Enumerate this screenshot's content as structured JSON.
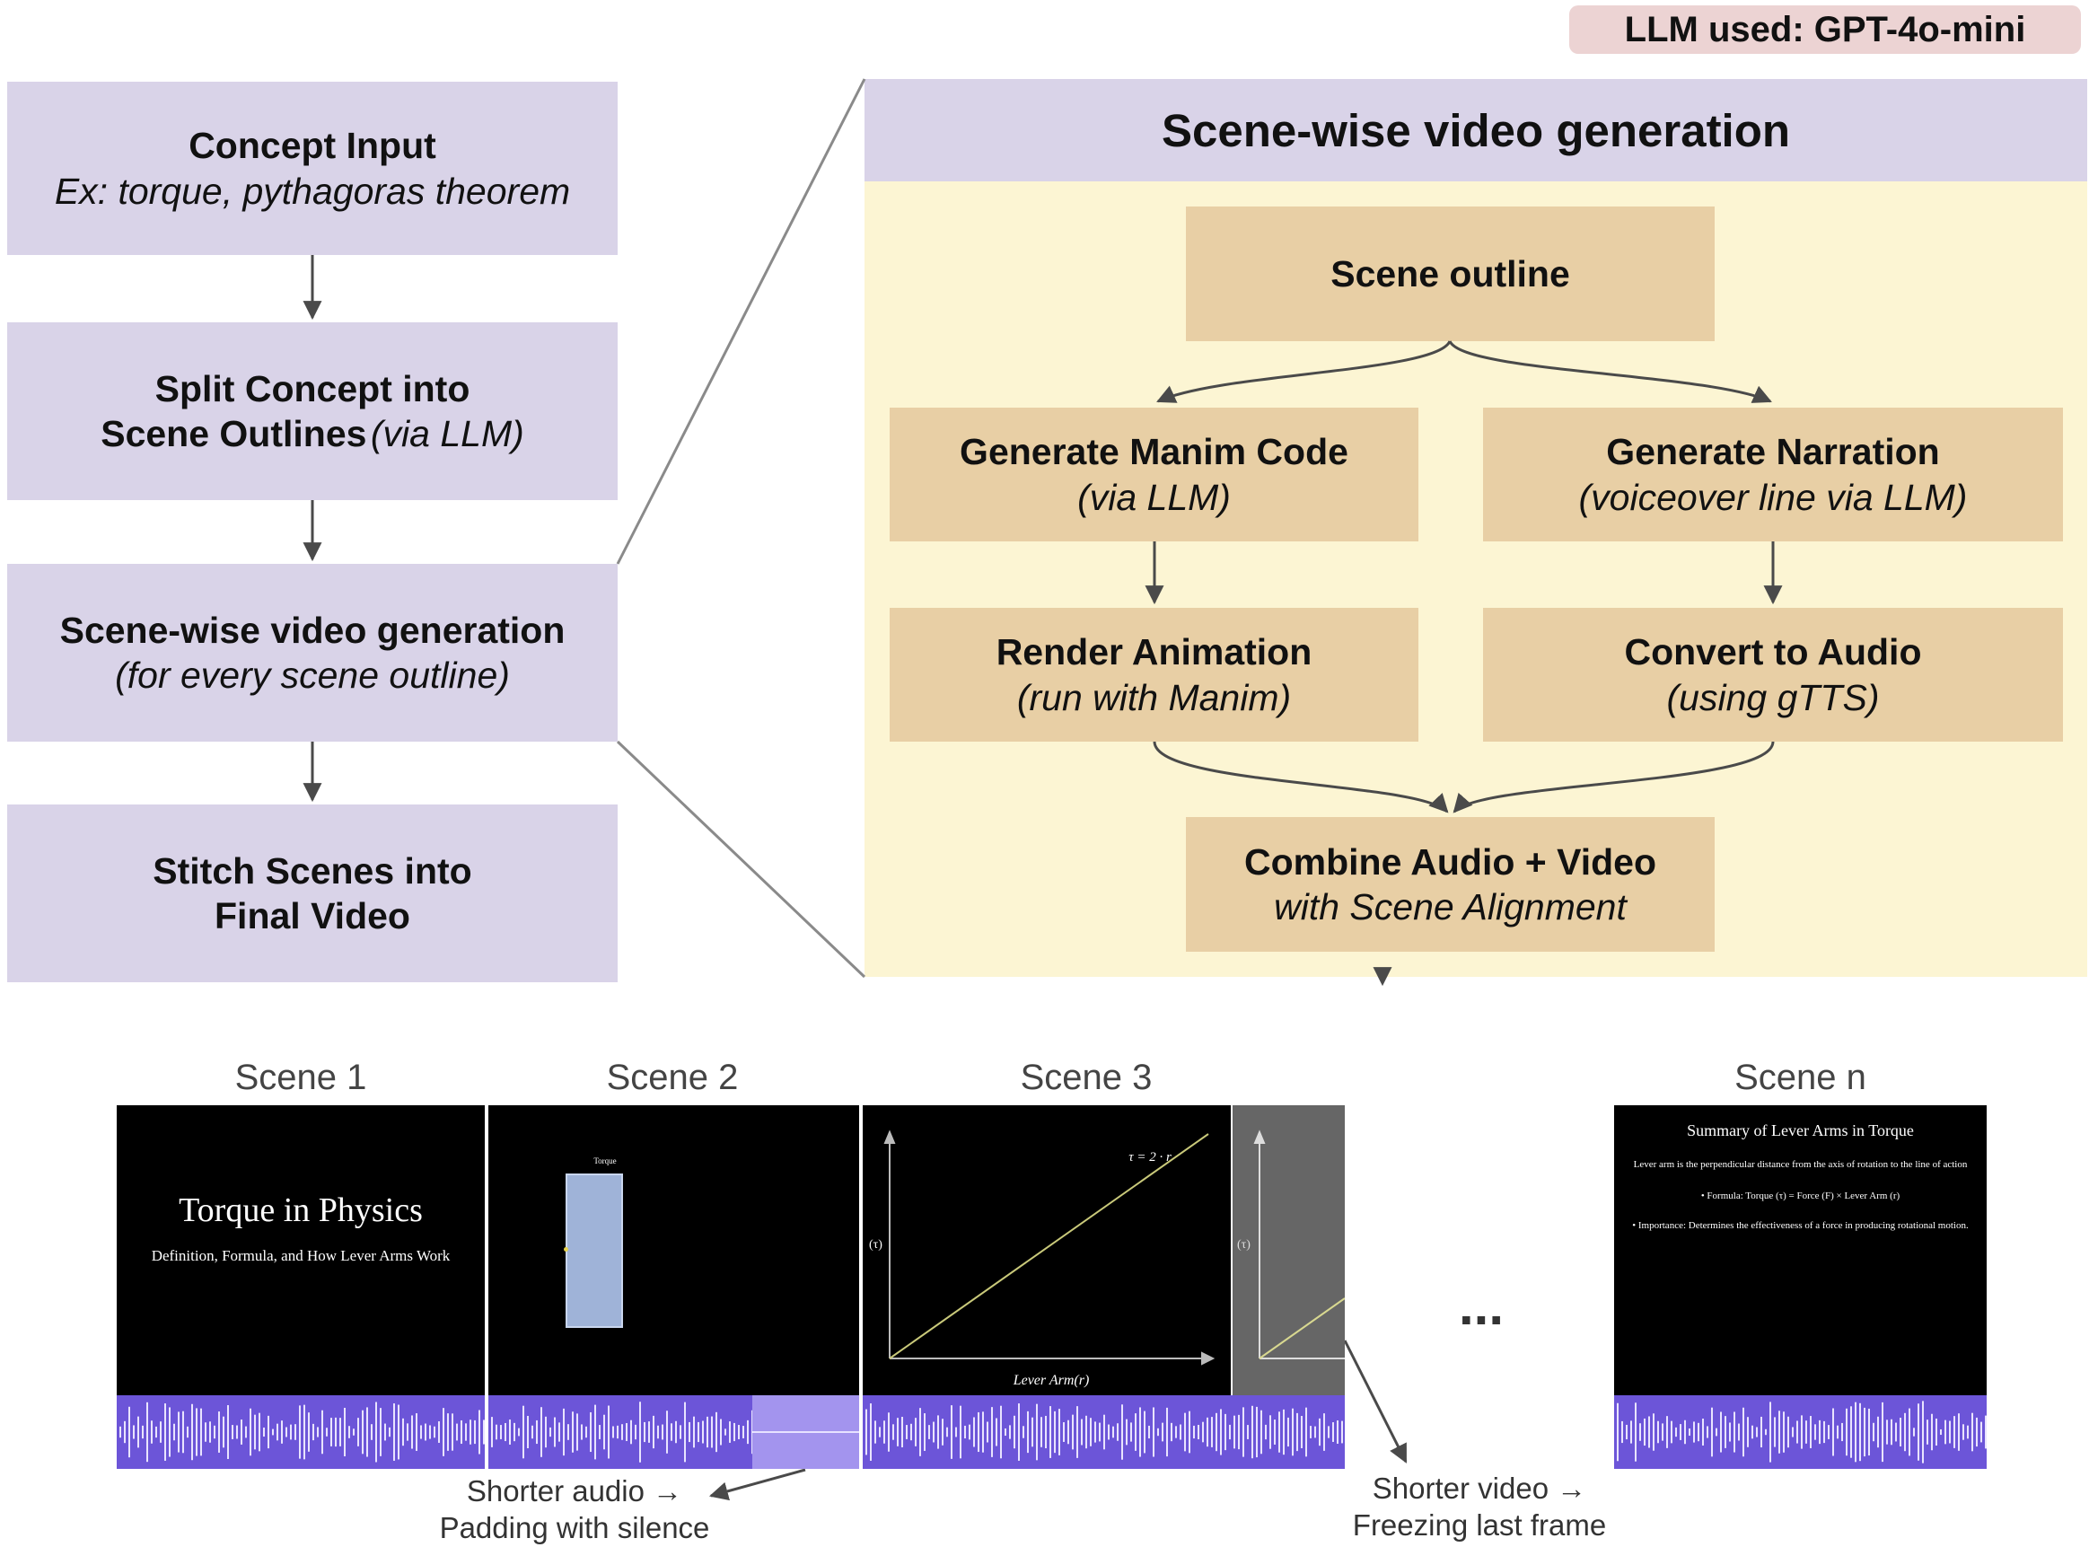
{
  "llm_badge": "LLM used: GPT-4o-mini",
  "left_flow": [
    {
      "title": "Concept Input",
      "subtitle": "Ex: torque, pythagoras theorem"
    },
    {
      "title": "Split Concept into",
      "title2": "Scene Outlines",
      "subtitle": "(via LLM)"
    },
    {
      "title": "Scene-wise video generation",
      "subtitle": "(for every scene outline)"
    },
    {
      "title": "Stitch Scenes into",
      "title2": "Final Video"
    }
  ],
  "panel": {
    "header": "Scene-wise video generation",
    "scene_outline": "Scene outline",
    "manim_code": {
      "title": "Generate Manim Code",
      "subtitle": "(via LLM)"
    },
    "narration": {
      "title": "Generate Narration",
      "subtitle": "(voiceover line via LLM)"
    },
    "render": {
      "title": "Render Animation",
      "subtitle": "(run with Manim)"
    },
    "audio": {
      "title": "Convert to Audio",
      "subtitle": "(using gTTS)"
    },
    "combine": {
      "title": "Combine Audio + Video",
      "subtitle": "with Scene Alignment"
    }
  },
  "scenes": {
    "labels": [
      "Scene 1",
      "Scene 2",
      "Scene 3",
      "Scene n"
    ],
    "ellipsis": "...",
    "scene1": {
      "title": "Torque in Physics",
      "subtitle": "Definition, Formula, and How Lever Arms Work"
    },
    "scene2": {
      "label": "Torque"
    },
    "scene3": {
      "eq": "τ = 2 · r",
      "ylabel": "(τ)",
      "xlabel": "Lever Arm(r)"
    },
    "scenen": {
      "title": "Summary of Lever Arms in Torque",
      "line1": "Lever arm is the perpendicular distance from the axis of rotation to the line of action",
      "line2": "• Formula: Torque (τ) = Force (F) × Lever Arm (r)",
      "line3": "• Importance: Determines the effectiveness of a force in producing rotational motion."
    }
  },
  "notes": {
    "audio_line1": "Shorter audio →",
    "audio_line2": "Padding with silence",
    "video_line1": "Shorter video →",
    "video_line2": "Freezing last frame"
  },
  "colors": {
    "lavender": "#d9d3e8",
    "tan": "#e8cfa5",
    "panel": "#fcf5d3",
    "waveform": "#6c55d8",
    "badge": "#ecd3d3"
  }
}
